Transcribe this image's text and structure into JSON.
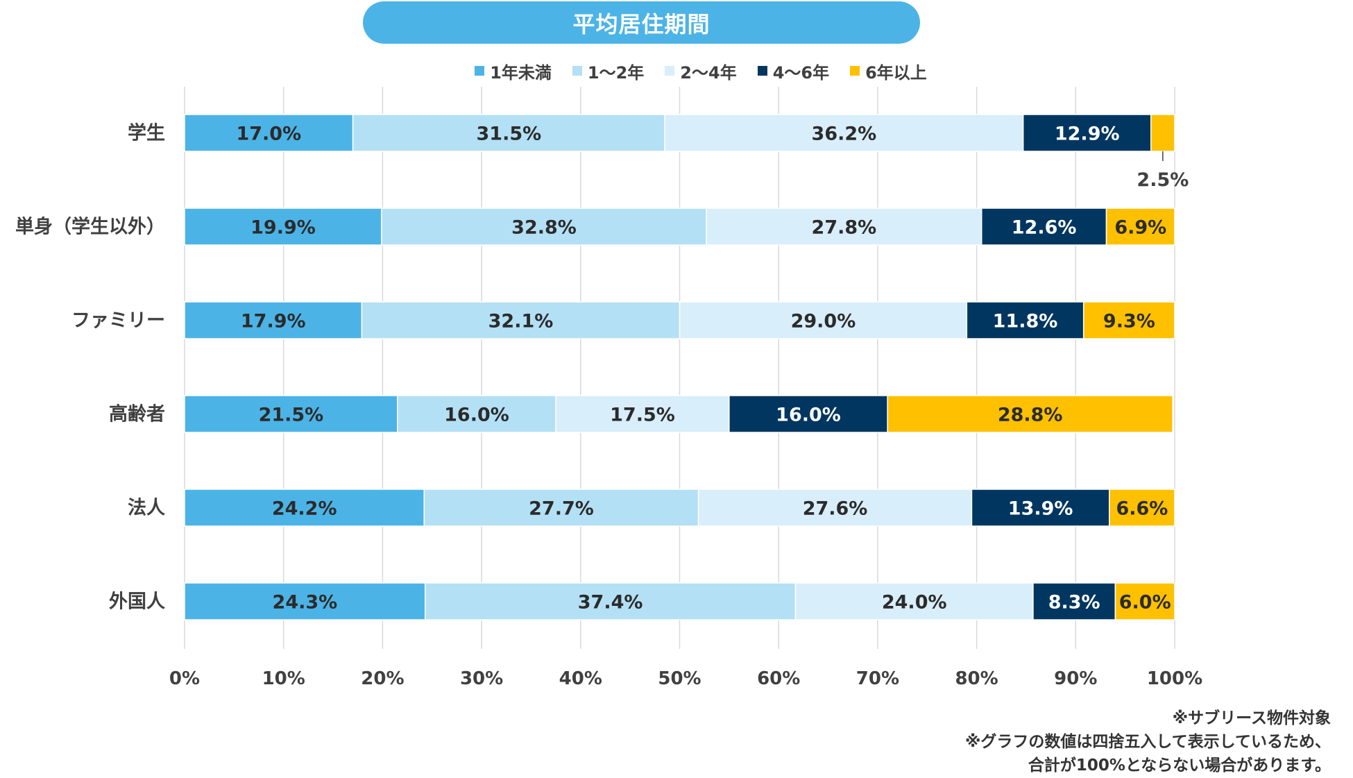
{
  "colors": {
    "background": "#ffffff",
    "title_bg": "#4cb3e6",
    "grid": "#d9d9d9",
    "text": "#404040",
    "series": [
      "#4cb3e6",
      "#b3e0f5",
      "#d8eefa",
      "#003660",
      "#ffc000"
    ],
    "label_on_series": [
      "#2b2b2b",
      "#2b2b2b",
      "#2b2b2b",
      "#ffffff",
      "#2b2b2b"
    ]
  },
  "chart_data": {
    "type": "bar",
    "orientation": "horizontal",
    "stacked": true,
    "title": "平均居住期間",
    "categories": [
      "学生",
      "単身（学生以外）",
      "ファミリー",
      "高齢者",
      "法人",
      "外国人"
    ],
    "series": [
      {
        "name": "1年未満",
        "values": [
          17.0,
          19.9,
          17.9,
          21.5,
          24.2,
          24.3
        ]
      },
      {
        "name": "1～2年",
        "values": [
          31.5,
          32.8,
          32.1,
          16.0,
          27.7,
          37.4
        ]
      },
      {
        "name": "2～4年",
        "values": [
          36.2,
          27.8,
          29.0,
          17.5,
          27.6,
          24.0
        ]
      },
      {
        "name": "4～6年",
        "values": [
          12.9,
          12.6,
          11.8,
          16.0,
          13.9,
          8.3
        ]
      },
      {
        "name": "6年以上",
        "values": [
          2.5,
          6.9,
          9.3,
          28.8,
          6.6,
          6.0
        ]
      }
    ],
    "value_suffix": "%",
    "xlim": [
      0,
      100
    ],
    "x_ticks": [
      "0%",
      "10%",
      "20%",
      "30%",
      "40%",
      "50%",
      "60%",
      "70%",
      "80%",
      "90%",
      "100%"
    ],
    "grid": true,
    "legend_position": "top"
  },
  "notes": [
    "※サブリース物件対象",
    "※グラフの数値は四捨五入して表示しているため、",
    "合計が100%とならない場合があります。"
  ]
}
